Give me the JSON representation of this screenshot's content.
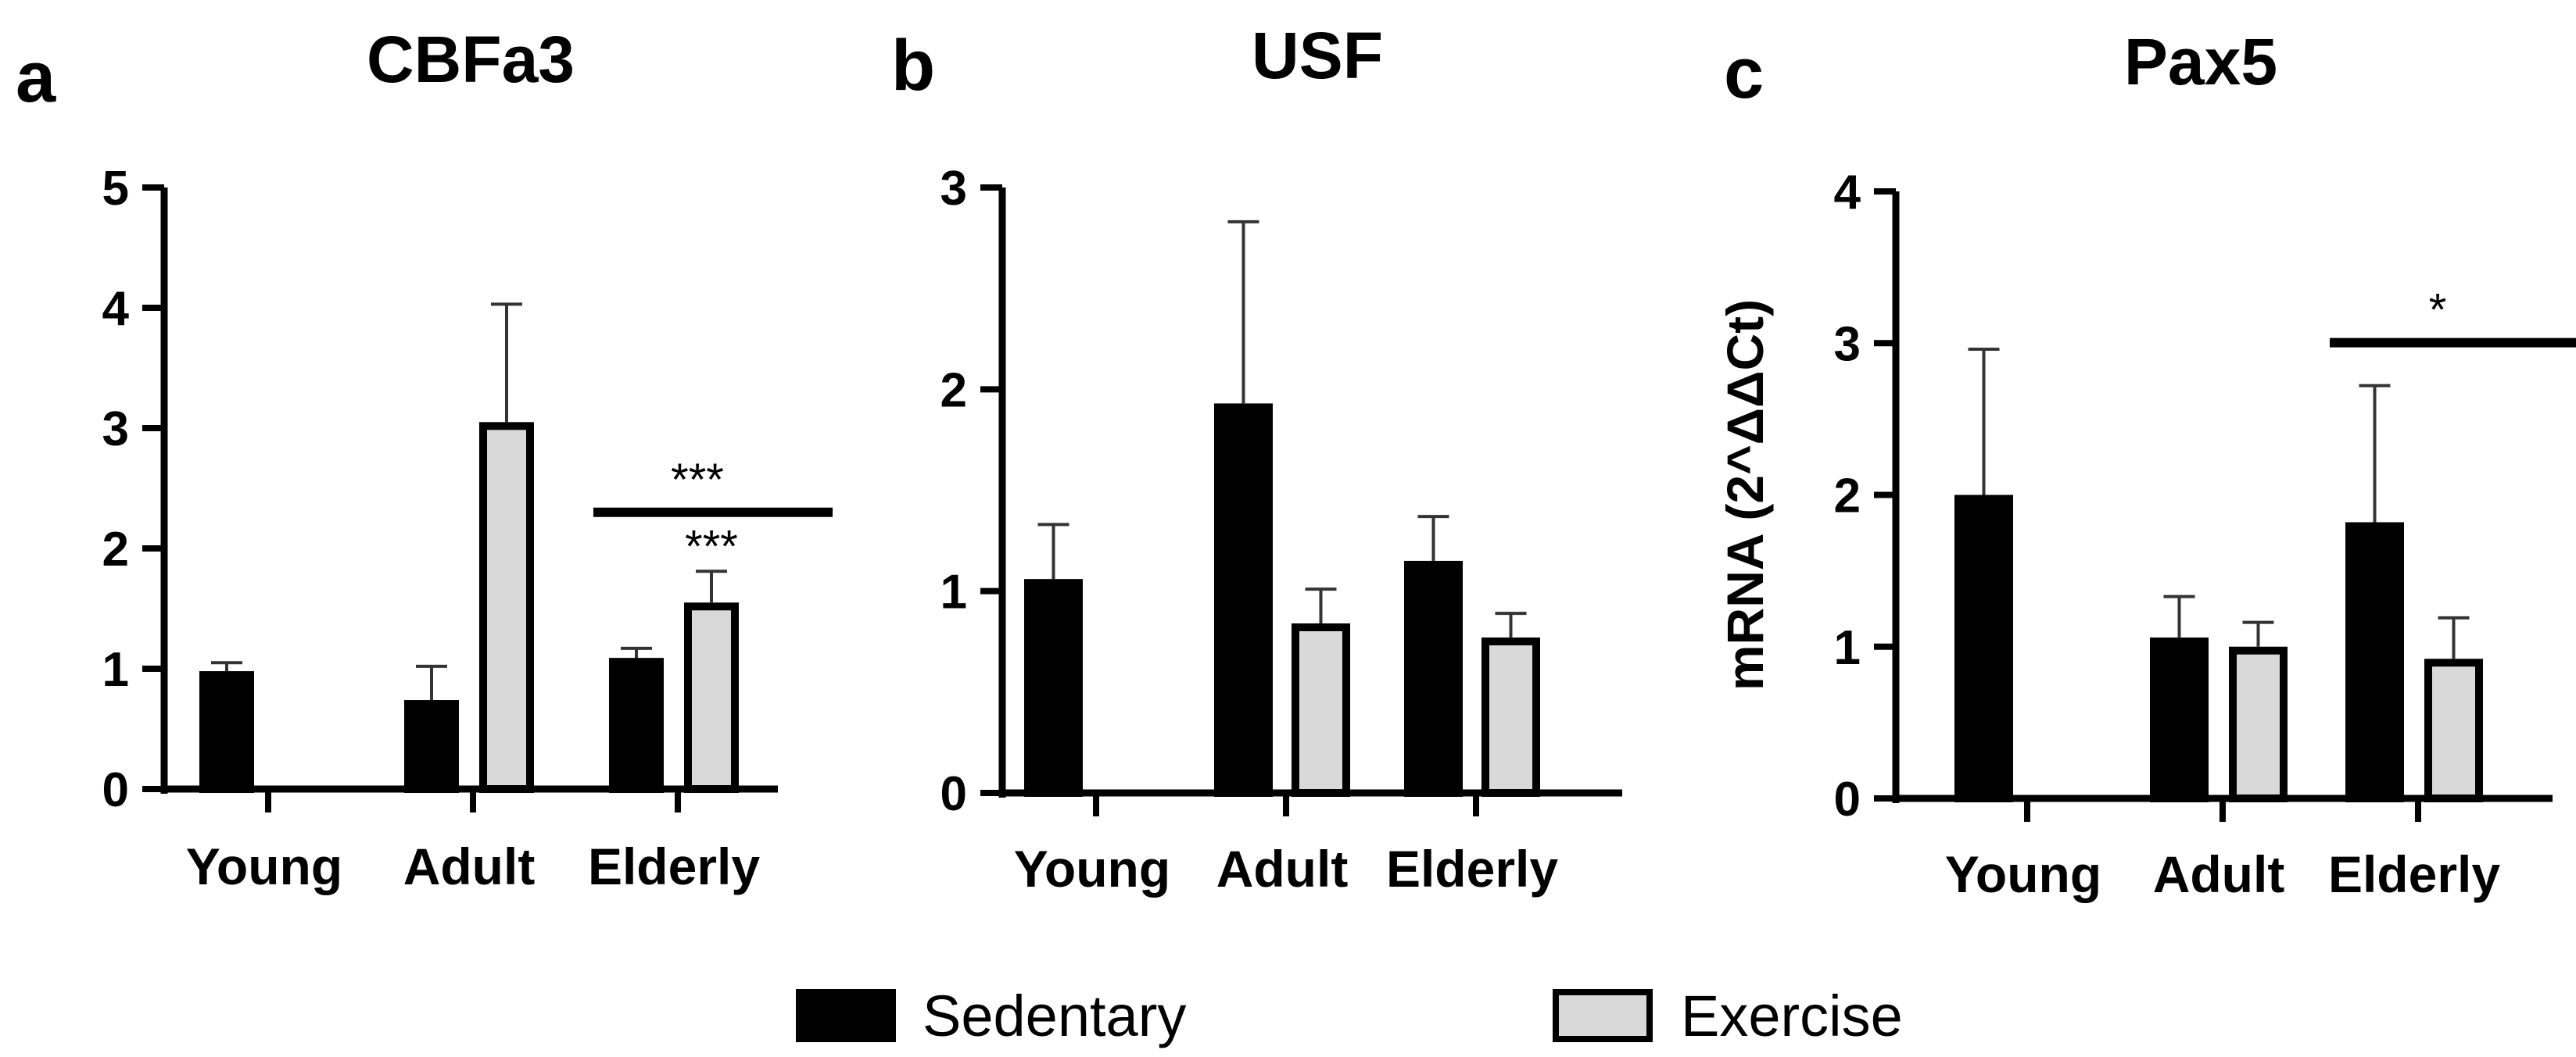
{
  "chart_data": [
    {
      "type": "bar",
      "panel": "a",
      "title": "CBFa3",
      "xlabel": "",
      "ylabel": "",
      "ylim": [
        0,
        5
      ],
      "yticks": [
        "0",
        "1",
        "2",
        "3",
        "4",
        "5"
      ],
      "categories": [
        "Young",
        "Adult",
        "Elderly"
      ],
      "series": [
        {
          "name": "Sedentary",
          "values": [
            0.98,
            0.74,
            1.09
          ],
          "errors": [
            0.07,
            0.28,
            0.08
          ]
        },
        {
          "name": "Exercise",
          "values": [
            null,
            3.05,
            1.55
          ],
          "errors": [
            null,
            0.98,
            0.26
          ]
        }
      ],
      "annotations": [
        {
          "text": "***",
          "type": "bracket",
          "category": "Elderly"
        },
        {
          "text": "***",
          "type": "bar",
          "category": "Elderly",
          "series": "Exercise"
        }
      ]
    },
    {
      "type": "bar",
      "panel": "b",
      "title": "USF",
      "xlabel": "",
      "ylabel": "",
      "ylim": [
        0,
        3
      ],
      "yticks": [
        "0",
        "1",
        "2",
        "3"
      ],
      "categories": [
        "Young",
        "Adult",
        "Elderly"
      ],
      "series": [
        {
          "name": "Sedentary",
          "values": [
            1.06,
            1.93,
            1.15
          ],
          "errors": [
            0.27,
            0.9,
            0.22
          ]
        },
        {
          "name": "Exercise",
          "values": [
            null,
            0.84,
            0.77
          ],
          "errors": [
            null,
            0.17,
            0.12
          ]
        }
      ],
      "annotations": []
    },
    {
      "type": "bar",
      "panel": "c",
      "title": "Pax5",
      "xlabel": "",
      "ylabel": "mRNA (2^ΔΔCt)",
      "ylim": [
        0,
        4
      ],
      "yticks": [
        "0",
        "1",
        "2",
        "3",
        "4"
      ],
      "categories": [
        "Young",
        "Adult",
        "Elderly"
      ],
      "series": [
        {
          "name": "Sedentary",
          "values": [
            2.0,
            1.06,
            1.82
          ],
          "errors": [
            0.96,
            0.27,
            0.9
          ]
        },
        {
          "name": "Exercise",
          "values": [
            null,
            1.0,
            0.92
          ],
          "errors": [
            null,
            0.16,
            0.27
          ]
        }
      ],
      "annotations": [
        {
          "text": "*",
          "type": "bracket",
          "category": "Elderly"
        }
      ]
    }
  ],
  "legend": {
    "position": "bottom-center",
    "items": [
      {
        "label": "Sedentary",
        "color": "#000000"
      },
      {
        "label": "Exercise",
        "color": "#d9d9d9"
      }
    ]
  },
  "colors": {
    "sedentary": "#000000",
    "exercise": "#d9d9d9",
    "axis": "#000000"
  }
}
